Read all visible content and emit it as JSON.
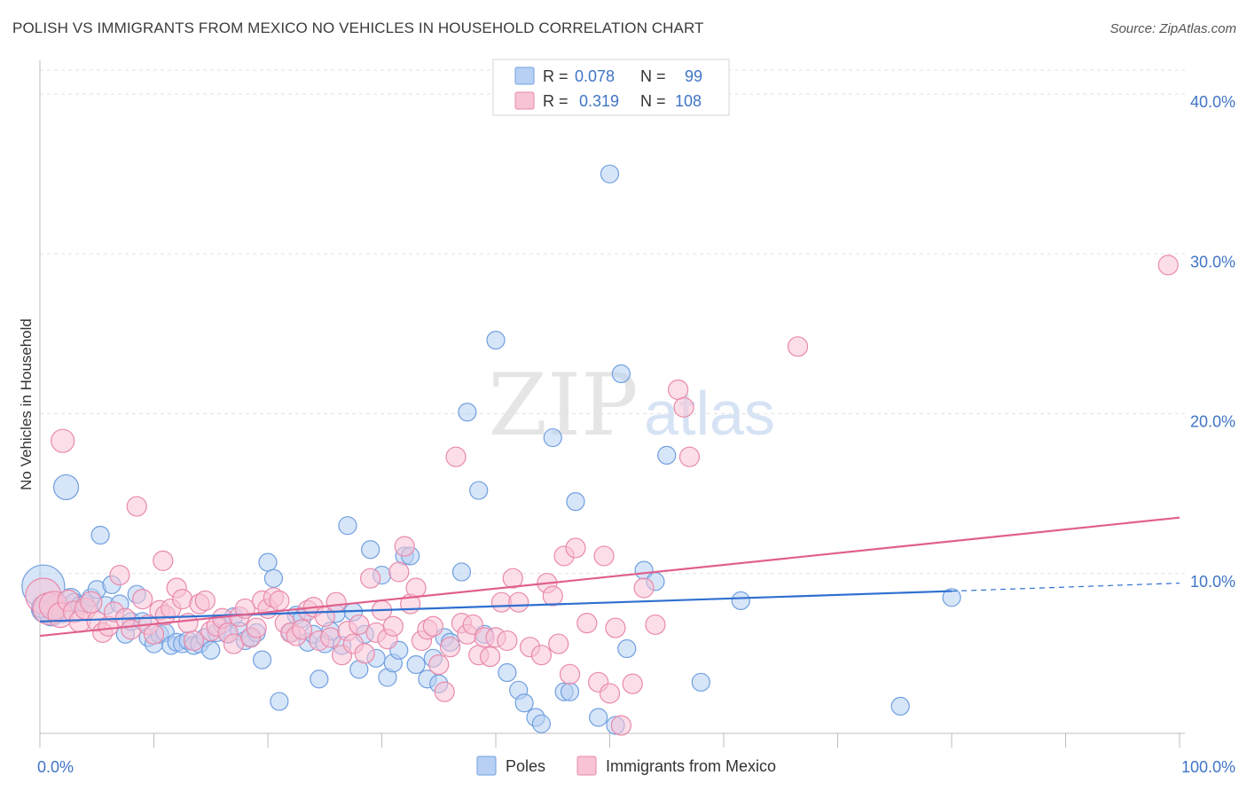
{
  "title": "POLISH VS IMMIGRANTS FROM MEXICO NO VEHICLES IN HOUSEHOLD CORRELATION CHART",
  "source": "Source: ZipAtlas.com",
  "watermark": {
    "zip": "ZIP",
    "atlas": "atlas"
  },
  "chart_data": {
    "type": "scatter",
    "title": "POLISH VS IMMIGRANTS FROM MEXICO NO VEHICLES IN HOUSEHOLD CORRELATION CHART",
    "xlabel": "",
    "ylabel": "No Vehicles in Household",
    "xlim": [
      0,
      100
    ],
    "ylim": [
      0,
      42
    ],
    "x_tick_labels": [
      "0.0%",
      "100.0%"
    ],
    "y_ticks": [
      10,
      20,
      30,
      40
    ],
    "y_tick_labels": [
      "10.0%",
      "20.0%",
      "30.0%",
      "40.0%"
    ],
    "grid": true,
    "legend_position": "top-center",
    "stats": [
      {
        "r_label": "R =",
        "r_value": "0.078",
        "n_label": "N =",
        "n_value": "99"
      },
      {
        "r_label": "R =",
        "r_value": "0.319",
        "n_label": "N =",
        "n_value": "108"
      }
    ],
    "series": [
      {
        "name": "Poles",
        "color": "#6f9fe0",
        "fill": "#b7d0f3",
        "line_color": "#2f6fd0",
        "trend": {
          "x0": 0,
          "y0": 7.0,
          "x1": 80,
          "y1": 8.9,
          "dash_x1": 100,
          "dash_y1": 9.4
        },
        "points": [
          [
            0.3,
            9.2
          ],
          [
            0.5,
            7.8
          ],
          [
            1.0,
            7.5
          ],
          [
            1.5,
            8.0
          ],
          [
            2.0,
            7.6
          ],
          [
            2.3,
            15.4
          ],
          [
            2.7,
            8.4
          ],
          [
            3.0,
            8.2
          ],
          [
            3.5,
            8.0
          ],
          [
            4.0,
            8.1
          ],
          [
            4.5,
            8.5
          ],
          [
            5.0,
            9.0
          ],
          [
            5.3,
            12.4
          ],
          [
            5.8,
            8.0
          ],
          [
            6.3,
            9.3
          ],
          [
            7.0,
            8.1
          ],
          [
            7.5,
            6.2
          ],
          [
            8.0,
            7.0
          ],
          [
            8.5,
            8.7
          ],
          [
            9.0,
            7.0
          ],
          [
            9.5,
            6.0
          ],
          [
            10.0,
            5.6
          ],
          [
            10.5,
            6.2
          ],
          [
            11.0,
            6.3
          ],
          [
            11.5,
            5.5
          ],
          [
            12.0,
            5.7
          ],
          [
            12.5,
            5.6
          ],
          [
            13.0,
            5.8
          ],
          [
            13.5,
            5.5
          ],
          [
            14.0,
            5.6
          ],
          [
            14.5,
            6.0
          ],
          [
            15.0,
            5.2
          ],
          [
            15.5,
            6.3
          ],
          [
            16.0,
            6.8
          ],
          [
            16.5,
            6.2
          ],
          [
            17.0,
            7.3
          ],
          [
            17.5,
            6.4
          ],
          [
            18.0,
            5.8
          ],
          [
            18.5,
            6.0
          ],
          [
            19.0,
            6.3
          ],
          [
            19.5,
            4.6
          ],
          [
            20.0,
            10.7
          ],
          [
            20.5,
            9.7
          ],
          [
            21.0,
            2.0
          ],
          [
            22.0,
            6.3
          ],
          [
            22.5,
            7.4
          ],
          [
            23.0,
            7.2
          ],
          [
            23.5,
            5.7
          ],
          [
            24.0,
            6.2
          ],
          [
            24.5,
            3.4
          ],
          [
            25.0,
            5.6
          ],
          [
            25.5,
            6.4
          ],
          [
            26.0,
            7.5
          ],
          [
            26.5,
            5.5
          ],
          [
            27.0,
            13.0
          ],
          [
            27.5,
            7.6
          ],
          [
            28.0,
            4.0
          ],
          [
            28.5,
            6.2
          ],
          [
            29.0,
            11.5
          ],
          [
            29.5,
            4.7
          ],
          [
            30.0,
            9.9
          ],
          [
            30.5,
            3.5
          ],
          [
            31.0,
            4.4
          ],
          [
            31.5,
            5.2
          ],
          [
            32.0,
            11.1
          ],
          [
            32.5,
            11.1
          ],
          [
            33.0,
            4.3
          ],
          [
            34.0,
            3.4
          ],
          [
            34.5,
            4.7
          ],
          [
            35.0,
            3.1
          ],
          [
            35.5,
            6.0
          ],
          [
            36.0,
            5.7
          ],
          [
            37.0,
            10.1
          ],
          [
            37.5,
            20.1
          ],
          [
            38.5,
            15.2
          ],
          [
            39.0,
            6.2
          ],
          [
            40.0,
            24.6
          ],
          [
            41.0,
            3.8
          ],
          [
            42.0,
            2.7
          ],
          [
            42.5,
            1.9
          ],
          [
            43.5,
            1.0
          ],
          [
            44.0,
            0.6
          ],
          [
            45.0,
            18.5
          ],
          [
            46.0,
            2.6
          ],
          [
            46.5,
            2.6
          ],
          [
            47.0,
            14.5
          ],
          [
            49.0,
            1.0
          ],
          [
            50.0,
            35.0
          ],
          [
            50.5,
            0.5
          ],
          [
            51.0,
            22.5
          ],
          [
            51.5,
            5.3
          ],
          [
            53.0,
            10.2
          ],
          [
            54.0,
            9.5
          ],
          [
            55.0,
            17.4
          ],
          [
            58.0,
            3.2
          ],
          [
            61.5,
            8.3
          ],
          [
            75.5,
            1.7
          ],
          [
            80.0,
            8.5
          ],
          [
            0.1,
            7.8
          ]
        ],
        "sizes": [
          24,
          16,
          14,
          12,
          12,
          14,
          12,
          10,
          10,
          10,
          10,
          10,
          10,
          10,
          10,
          10,
          10,
          10,
          10,
          10,
          10,
          10,
          10,
          10,
          10,
          10,
          10,
          10,
          10,
          10,
          10,
          10,
          10,
          10,
          10,
          10,
          10,
          10,
          10,
          10,
          10,
          10,
          10,
          10,
          10,
          10,
          10,
          10,
          10,
          10,
          10,
          10,
          10,
          10,
          10,
          10,
          10,
          10,
          10,
          10,
          10,
          10,
          10,
          10,
          10,
          10,
          10,
          10,
          10,
          10,
          10,
          10,
          10,
          10,
          10,
          10,
          10,
          10,
          10,
          10,
          10,
          10,
          10,
          10,
          10,
          10,
          10,
          10,
          10,
          10,
          10,
          10,
          10,
          10,
          10,
          10,
          10,
          10,
          10
        ]
      },
      {
        "name": "Immigrants from Mexico",
        "color": "#e98aab",
        "fill": "#f7c3d5",
        "line_color": "#e0608d",
        "trend": {
          "x0": 0,
          "y0": 6.1,
          "x1": 100,
          "y1": 13.5
        },
        "points": [
          [
            0.3,
            8.6
          ],
          [
            0.8,
            7.8
          ],
          [
            1.2,
            8.0
          ],
          [
            1.8,
            7.4
          ],
          [
            2.0,
            18.3
          ],
          [
            2.5,
            8.3
          ],
          [
            3.0,
            7.6
          ],
          [
            3.5,
            7.0
          ],
          [
            4.0,
            7.8
          ],
          [
            4.5,
            8.2
          ],
          [
            5.0,
            7.0
          ],
          [
            5.5,
            6.3
          ],
          [
            6.0,
            6.7
          ],
          [
            6.5,
            7.6
          ],
          [
            7.0,
            9.9
          ],
          [
            7.5,
            7.2
          ],
          [
            8.0,
            6.5
          ],
          [
            8.5,
            14.2
          ],
          [
            9.0,
            8.4
          ],
          [
            9.5,
            6.8
          ],
          [
            10.0,
            6.2
          ],
          [
            10.5,
            7.7
          ],
          [
            11.0,
            7.4
          ],
          [
            11.5,
            7.8
          ],
          [
            12.0,
            9.1
          ],
          [
            12.5,
            8.4
          ],
          [
            13.0,
            6.9
          ],
          [
            13.5,
            5.8
          ],
          [
            14.0,
            8.1
          ],
          [
            14.5,
            8.3
          ],
          [
            15.0,
            6.4
          ],
          [
            15.5,
            6.7
          ],
          [
            16.0,
            7.2
          ],
          [
            16.5,
            6.3
          ],
          [
            17.0,
            5.6
          ],
          [
            17.5,
            7.3
          ],
          [
            18.0,
            7.8
          ],
          [
            18.5,
            6.0
          ],
          [
            19.0,
            6.6
          ],
          [
            19.5,
            8.3
          ],
          [
            20.0,
            7.8
          ],
          [
            20.5,
            8.5
          ],
          [
            21.0,
            8.3
          ],
          [
            21.5,
            6.9
          ],
          [
            22.0,
            6.3
          ],
          [
            22.5,
            6.1
          ],
          [
            23.0,
            6.5
          ],
          [
            23.5,
            7.7
          ],
          [
            24.0,
            7.9
          ],
          [
            24.5,
            5.8
          ],
          [
            25.0,
            7.3
          ],
          [
            25.5,
            6.0
          ],
          [
            26.0,
            8.2
          ],
          [
            26.5,
            4.9
          ],
          [
            27.0,
            6.4
          ],
          [
            27.5,
            5.6
          ],
          [
            28.0,
            6.8
          ],
          [
            28.5,
            5.0
          ],
          [
            29.0,
            9.7
          ],
          [
            29.5,
            6.3
          ],
          [
            30.0,
            7.7
          ],
          [
            30.5,
            5.9
          ],
          [
            31.0,
            6.7
          ],
          [
            31.5,
            10.1
          ],
          [
            32.0,
            11.7
          ],
          [
            32.5,
            8.1
          ],
          [
            33.0,
            9.1
          ],
          [
            33.5,
            5.8
          ],
          [
            34.0,
            6.5
          ],
          [
            34.5,
            6.7
          ],
          [
            35.0,
            4.3
          ],
          [
            35.5,
            2.6
          ],
          [
            36.0,
            5.4
          ],
          [
            36.5,
            17.3
          ],
          [
            37.0,
            6.9
          ],
          [
            37.5,
            6.2
          ],
          [
            38.0,
            6.8
          ],
          [
            38.5,
            4.9
          ],
          [
            39.0,
            6.0
          ],
          [
            39.5,
            4.8
          ],
          [
            40.0,
            6.0
          ],
          [
            40.5,
            8.2
          ],
          [
            41.0,
            5.8
          ],
          [
            41.5,
            9.7
          ],
          [
            42.0,
            8.2
          ],
          [
            43.0,
            5.4
          ],
          [
            44.0,
            4.9
          ],
          [
            44.5,
            9.4
          ],
          [
            45.0,
            8.6
          ],
          [
            45.5,
            5.6
          ],
          [
            46.0,
            11.1
          ],
          [
            46.5,
            3.7
          ],
          [
            47.0,
            11.6
          ],
          [
            48.0,
            6.9
          ],
          [
            49.0,
            3.2
          ],
          [
            49.5,
            11.1
          ],
          [
            50.0,
            2.5
          ],
          [
            50.5,
            6.6
          ],
          [
            51.0,
            0.5
          ],
          [
            52.0,
            3.1
          ],
          [
            53.0,
            9.1
          ],
          [
            54.0,
            6.8
          ],
          [
            56.0,
            21.5
          ],
          [
            56.5,
            20.4
          ],
          [
            57.0,
            17.3
          ],
          [
            66.5,
            24.2
          ],
          [
            99.0,
            29.3
          ],
          [
            10.8,
            10.8
          ]
        ],
        "sizes": [
          20,
          18,
          16,
          14,
          13,
          12,
          12,
          12,
          12,
          12,
          11,
          11,
          11,
          11,
          11,
          11,
          11,
          11,
          11,
          11,
          11,
          11,
          11,
          11,
          11,
          11,
          11,
          11,
          11,
          11,
          11,
          11,
          11,
          11,
          11,
          11,
          11,
          11,
          11,
          11,
          11,
          11,
          11,
          11,
          11,
          11,
          11,
          11,
          11,
          11,
          11,
          11,
          11,
          11,
          11,
          11,
          11,
          11,
          11,
          11,
          11,
          11,
          11,
          11,
          11,
          11,
          11,
          11,
          11,
          11,
          11,
          11,
          11,
          11,
          11,
          11,
          11,
          11,
          11,
          11,
          11,
          11,
          11,
          11,
          11,
          11,
          11,
          11,
          11,
          11,
          11,
          11,
          11,
          11,
          11,
          11,
          11,
          11,
          11,
          11,
          11,
          11,
          11,
          11,
          11,
          11,
          11,
          11
        ]
      }
    ]
  }
}
